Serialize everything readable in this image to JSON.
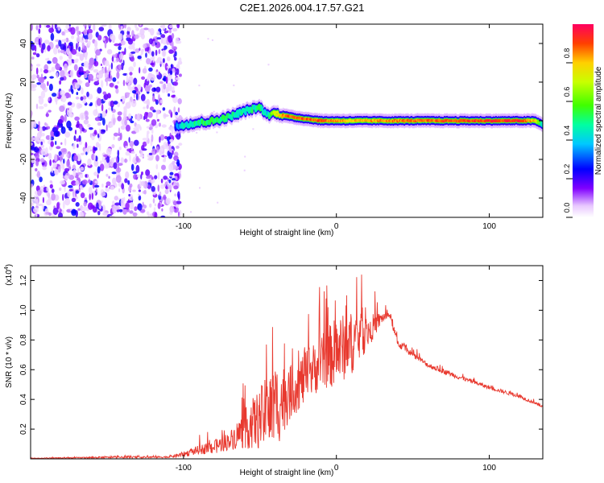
{
  "title": "C2E1.2026.004.17.57.G21",
  "chart_data": [
    {
      "type": "heatmap",
      "xlabel": "Height of straight line (km)",
      "ylabel": "Frequency (Hz)",
      "xlim": [
        -200,
        135
      ],
      "ylim": [
        -50,
        50
      ],
      "xticks": [
        -100,
        0,
        100
      ],
      "xtick_labels": [
        "-100",
        "0",
        "100"
      ],
      "yticks": [
        -40,
        -20,
        0,
        20,
        40
      ],
      "ytick_labels": [
        "-40",
        "-20",
        "0",
        "20",
        "40"
      ],
      "noise_region_x": [
        -200,
        -102
      ],
      "ridge": {
        "x": [
          -105,
          -100,
          -90,
          -80,
          -70,
          -60,
          -50,
          -45,
          -40,
          -35,
          -30,
          -20,
          -10,
          0,
          10,
          20,
          40,
          60,
          80,
          100,
          120,
          130,
          135
        ],
        "freq": [
          -3,
          -2,
          -1,
          0,
          2,
          5,
          7,
          3,
          4,
          3,
          2,
          1,
          0,
          0,
          0,
          0,
          0,
          0,
          0,
          0,
          0,
          0,
          -2
        ],
        "amp": [
          0.3,
          0.45,
          0.5,
          0.55,
          0.5,
          0.45,
          0.5,
          0.4,
          0.75,
          0.85,
          0.9,
          0.88,
          0.9,
          0.85,
          0.8,
          0.82,
          0.86,
          0.88,
          0.9,
          0.92,
          0.92,
          0.8,
          0.4
        ]
      },
      "colorbar": {
        "label": "Normalized spectral amplitude",
        "ticks": [
          0.0,
          0.2,
          0.4,
          0.6,
          0.8
        ],
        "tick_labels": [
          "0.0",
          "0.2",
          "0.4",
          "0.6",
          "0.8"
        ],
        "range": [
          0,
          1
        ]
      }
    },
    {
      "type": "line",
      "xlabel": "Height of straight line (km)",
      "ylabel": "SNR (10 * v/v)",
      "multiplier": "(x10",
      "multiplier_exp": "4",
      "multiplier_close": ")",
      "xlim": [
        -200,
        135
      ],
      "ylim": [
        0,
        1.3
      ],
      "xticks": [
        -100,
        0,
        100
      ],
      "xtick_labels": [
        "-100",
        "0",
        "100"
      ],
      "yticks": [
        0.2,
        0.4,
        0.6,
        0.8,
        1.0,
        1.2
      ],
      "ytick_labels": [
        "0.2",
        "0.4",
        "0.6",
        "0.8",
        "1.0",
        "1.2"
      ],
      "color": "#e8392f",
      "series": [
        {
          "name": "SNR",
          "x": [
            -200,
            -150,
            -110,
            -100,
            -90,
            -80,
            -70,
            -60,
            -50,
            -40,
            -30,
            -20,
            -10,
            0,
            10,
            20,
            30,
            35,
            40,
            50,
            60,
            80,
            100,
            120,
            135
          ],
          "base": [
            0.003,
            0.01,
            0.012,
            0.03,
            0.06,
            0.08,
            0.12,
            0.2,
            0.27,
            0.35,
            0.45,
            0.55,
            0.65,
            0.72,
            0.78,
            0.85,
            0.95,
            0.97,
            0.78,
            0.7,
            0.63,
            0.55,
            0.48,
            0.42,
            0.35
          ],
          "spread": [
            0.003,
            0.01,
            0.01,
            0.03,
            0.05,
            0.08,
            0.1,
            0.22,
            0.35,
            0.5,
            0.3,
            0.3,
            0.3,
            0.4,
            0.35,
            0.2,
            0.06,
            0.04,
            0.05,
            0.03,
            0.03,
            0.025,
            0.02,
            0.02,
            0.015
          ]
        }
      ]
    }
  ]
}
